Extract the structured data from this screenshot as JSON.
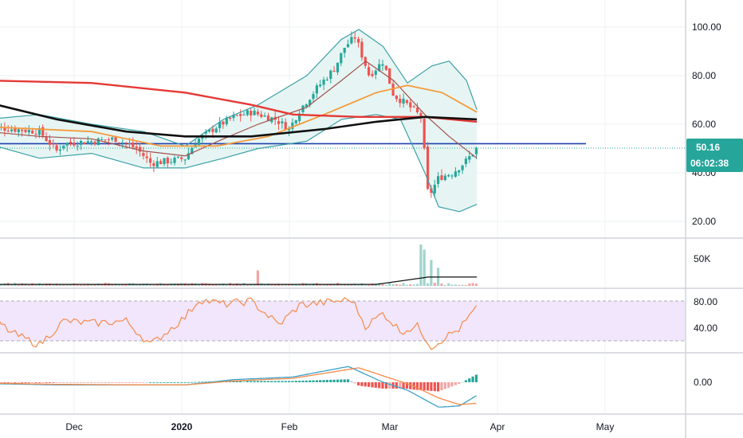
{
  "colors": {
    "up": "#26a69a",
    "down": "#ef5350",
    "up_vol": "#9fd4cc",
    "down_vol": "#f2a6a4",
    "bb_line": "#3ca0a8",
    "bb_fill": "#e6f5f3",
    "basis": "#a0524d",
    "ma_red": "#e53935",
    "ma_black": "#111111",
    "ma_orange": "#f59a3b",
    "hline": "#1e40af",
    "rsi_line": "#f58b4b",
    "rsi_band": "#f1e6fb",
    "macd_line": "#3ca0c8",
    "signal_line": "#f58b4b",
    "grid": "#eef0f3",
    "tag": "#26a69a"
  },
  "axes": {
    "price_ticks": [
      "100.00",
      "80.00",
      "60.00",
      "40.00",
      "20.00"
    ],
    "volume_ticks": [
      "50K"
    ],
    "rsi_ticks": [
      "80.00",
      "40.00"
    ],
    "macd_ticks": [
      "0.00"
    ],
    "x_ticks": [
      "Dec",
      "2020",
      "Feb",
      "Mar",
      "Apr",
      "May"
    ]
  },
  "price_tag": {
    "price": "50.16",
    "countdown": "06:02:38"
  },
  "chart_data": [
    {
      "type": "candlestick",
      "pane": "price",
      "ylim": [
        12,
        110
      ],
      "x_dates": [
        "2019-11-05",
        "2020-03-25"
      ],
      "close_knots": [
        [
          "2019-11-05",
          59
        ],
        [
          "2019-11-20",
          57
        ],
        [
          "2019-11-25",
          49
        ],
        [
          "2019-11-27",
          52
        ],
        [
          "2019-12-05",
          53
        ],
        [
          "2019-12-12",
          54
        ],
        [
          "2019-12-18",
          50
        ],
        [
          "2019-12-22",
          44
        ],
        [
          "2019-12-28",
          45
        ],
        [
          "2020-01-01",
          46
        ],
        [
          "2020-01-04",
          53
        ],
        [
          "2020-01-10",
          59
        ],
        [
          "2020-01-15",
          63
        ],
        [
          "2020-01-20",
          65
        ],
        [
          "2020-01-27",
          62
        ],
        [
          "2020-01-31",
          58
        ],
        [
          "2020-02-03",
          66
        ],
        [
          "2020-02-08",
          75
        ],
        [
          "2020-02-13",
          83
        ],
        [
          "2020-02-16",
          92
        ],
        [
          "2020-02-19",
          96
        ],
        [
          "2020-02-23",
          80
        ],
        [
          "2020-02-27",
          86
        ],
        [
          "2020-03-01",
          72
        ],
        [
          "2020-03-05",
          68
        ],
        [
          "2020-03-09",
          63
        ],
        [
          "2020-03-11",
          30
        ],
        [
          "2020-03-14",
          38
        ],
        [
          "2020-03-18",
          40
        ],
        [
          "2020-03-22",
          45
        ],
        [
          "2020-03-25",
          50.16
        ]
      ],
      "horizontal_line": 52,
      "last_price": 50.16
    },
    {
      "type": "line",
      "pane": "price",
      "series": [
        {
          "key": "bb_upper",
          "points": [
            [
              "2019-11-05",
              62
            ],
            [
              "2019-11-20",
              64
            ],
            [
              "2019-12-05",
              60
            ],
            [
              "2019-12-20",
              57
            ],
            [
              "2020-01-01",
              51
            ],
            [
              "2020-01-12",
              62
            ],
            [
              "2020-01-22",
              68
            ],
            [
              "2020-02-05",
              80
            ],
            [
              "2020-02-15",
              95
            ],
            [
              "2020-02-20",
              99
            ],
            [
              "2020-02-27",
              92
            ],
            [
              "2020-03-05",
              77
            ],
            [
              "2020-03-12",
              84
            ],
            [
              "2020-03-17",
              86
            ],
            [
              "2020-03-22",
              78
            ],
            [
              "2020-03-25",
              66
            ]
          ]
        },
        {
          "key": "bb_lower",
          "points": [
            [
              "2019-11-05",
              52
            ],
            [
              "2019-11-20",
              46
            ],
            [
              "2019-12-05",
              48
            ],
            [
              "2019-12-20",
              42
            ],
            [
              "2020-01-01",
              42
            ],
            [
              "2020-01-12",
              46
            ],
            [
              "2020-01-22",
              50
            ],
            [
              "2020-02-05",
              53
            ],
            [
              "2020-02-15",
              62
            ],
            [
              "2020-02-25",
              64
            ],
            [
              "2020-03-03",
              62
            ],
            [
              "2020-03-10",
              40
            ],
            [
              "2020-03-14",
              26
            ],
            [
              "2020-03-20",
              24
            ],
            [
              "2020-03-25",
              27
            ]
          ]
        },
        {
          "key": "basis",
          "points": [
            [
              "2019-11-05",
              57
            ],
            [
              "2019-11-20",
              55
            ],
            [
              "2019-12-05",
              54
            ],
            [
              "2019-12-20",
              49
            ],
            [
              "2020-01-01",
              47
            ],
            [
              "2020-01-12",
              54
            ],
            [
              "2020-01-22",
              60
            ],
            [
              "2020-02-05",
              67
            ],
            [
              "2020-02-15",
              78
            ],
            [
              "2020-02-22",
              86
            ],
            [
              "2020-03-01",
              78
            ],
            [
              "2020-03-10",
              64
            ],
            [
              "2020-03-17",
              55
            ],
            [
              "2020-03-25",
              46
            ]
          ]
        },
        {
          "key": "ma_red",
          "points": [
            [
              "2019-11-05",
              78
            ],
            [
              "2019-12-05",
              77
            ],
            [
              "2020-01-01",
              73
            ],
            [
              "2020-01-20",
              68
            ],
            [
              "2020-02-01",
              64
            ],
            [
              "2020-02-20",
              63
            ],
            [
              "2020-03-10",
              63
            ],
            [
              "2020-03-25",
              61
            ]
          ]
        },
        {
          "key": "ma_black",
          "points": [
            [
              "2019-11-05",
              69
            ],
            [
              "2019-11-25",
              62
            ],
            [
              "2019-12-15",
              57
            ],
            [
              "2020-01-01",
              55
            ],
            [
              "2020-01-20",
              55
            ],
            [
              "2020-02-10",
              58
            ],
            [
              "2020-02-25",
              61
            ],
            [
              "2020-03-10",
              63
            ],
            [
              "2020-03-25",
              62
            ]
          ]
        },
        {
          "key": "ma_orange",
          "points": [
            [
              "2019-11-05",
              59
            ],
            [
              "2019-12-05",
              57
            ],
            [
              "2019-12-25",
              51
            ],
            [
              "2020-01-10",
              51
            ],
            [
              "2020-01-25",
              55
            ],
            [
              "2020-02-10",
              64
            ],
            [
              "2020-02-25",
              73
            ],
            [
              "2020-03-05",
              76
            ],
            [
              "2020-03-15",
              73
            ],
            [
              "2020-03-25",
              65
            ]
          ]
        }
      ]
    },
    {
      "type": "bar",
      "pane": "volume",
      "ylim": [
        0,
        80000
      ],
      "spikes": [
        [
          "2020-01-22",
          30000
        ],
        [
          "2020-03-09",
          80000
        ],
        [
          "2020-03-10",
          70000
        ],
        [
          "2020-03-12",
          50000
        ],
        [
          "2020-03-14",
          35000
        ]
      ],
      "ma_points": [
        [
          "2019-11-05",
          3000
        ],
        [
          "2020-02-25",
          3000
        ],
        [
          "2020-03-11",
          17000
        ],
        [
          "2020-03-25",
          17000
        ]
      ]
    },
    {
      "type": "line",
      "pane": "rsi",
      "ylim": [
        15,
        95
      ],
      "bands": [
        30,
        80
      ],
      "points": [
        [
          "2019-11-05",
          65
        ],
        [
          "2019-11-12",
          40
        ],
        [
          "2019-11-20",
          25
        ],
        [
          "2019-11-27",
          55
        ],
        [
          "2019-12-05",
          52
        ],
        [
          "2019-12-15",
          55
        ],
        [
          "2019-12-22",
          25
        ],
        [
          "2020-01-01",
          60
        ],
        [
          "2020-01-05",
          82
        ],
        [
          "2020-01-12",
          76
        ],
        [
          "2020-01-20",
          80
        ],
        [
          "2020-01-28",
          50
        ],
        [
          "2020-02-03",
          75
        ],
        [
          "2020-02-10",
          78
        ],
        [
          "2020-02-18",
          82
        ],
        [
          "2020-02-22",
          48
        ],
        [
          "2020-02-27",
          65
        ],
        [
          "2020-03-03",
          42
        ],
        [
          "2020-03-08",
          48
        ],
        [
          "2020-03-12",
          22
        ],
        [
          "2020-03-16",
          35
        ],
        [
          "2020-03-20",
          45
        ],
        [
          "2020-03-25",
          72
        ]
      ]
    },
    {
      "type": "line",
      "pane": "macd",
      "ylim": [
        -12,
        10
      ],
      "macd": [
        [
          "2019-11-05",
          -0.5
        ],
        [
          "2019-11-25",
          -1
        ],
        [
          "2019-12-20",
          -1
        ],
        [
          "2020-01-01",
          -1
        ],
        [
          "2020-01-15",
          1
        ],
        [
          "2020-02-01",
          2
        ],
        [
          "2020-02-17",
          6
        ],
        [
          "2020-02-27",
          0
        ],
        [
          "2020-03-05",
          -3
        ],
        [
          "2020-03-14",
          -9.5
        ],
        [
          "2020-03-20",
          -9
        ],
        [
          "2020-03-25",
          -5
        ]
      ],
      "signal": [
        [
          "2019-11-05",
          -0.3
        ],
        [
          "2019-11-25",
          -0.8
        ],
        [
          "2019-12-20",
          -1
        ],
        [
          "2020-01-01",
          -1
        ],
        [
          "2020-01-15",
          0.5
        ],
        [
          "2020-02-01",
          1.5
        ],
        [
          "2020-02-20",
          5.5
        ],
        [
          "2020-02-28",
          2
        ],
        [
          "2020-03-06",
          -1
        ],
        [
          "2020-03-14",
          -6
        ],
        [
          "2020-03-20",
          -8.5
        ],
        [
          "2020-03-25",
          -8
        ]
      ]
    }
  ]
}
